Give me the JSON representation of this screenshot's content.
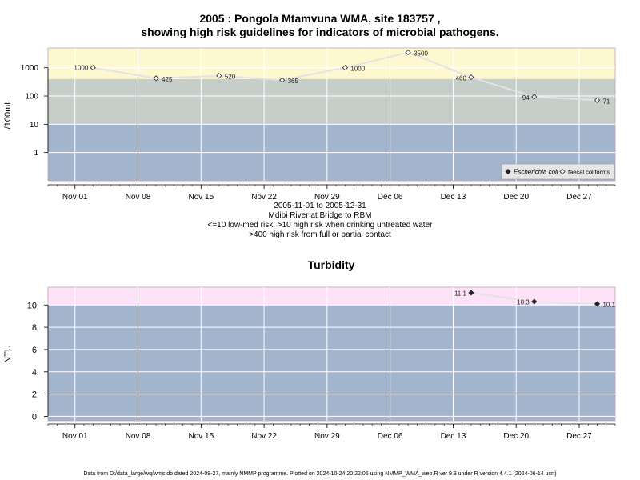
{
  "header": {
    "title_line1": "2005 : Pongola Mtamvuna WMA, site 183757 ,",
    "title_line2": "showing high risk guidelines for indicators of microbial pathogens."
  },
  "subtitle": {
    "line1": "2005-11-01 to 2005-12-31",
    "line2": "Mdibi River at Bridge to RBM",
    "line3": "<=10 low-med risk; >10 high risk when drinking untreated water",
    "line4": ">400 high risk from full or partial contact"
  },
  "footer": {
    "text": "Data from D:/data_large/wq/wms.db dated 2024-08-27, mainly NMMP programme. Plotted on 2024-10-24 20:22:06 using NMMP_WMA_web.R ver 9.3 under R version 4.4.1 (2024-06-14 ucrt)"
  },
  "colors": {
    "band_low": "#a3b4cd",
    "band_mid": "#c6ceca",
    "band_high": "#fef8d0",
    "band_pink": "#fde2f8",
    "grid": "#ffffff",
    "line": "#e3e3e3"
  },
  "chart_data": [
    {
      "type": "line",
      "title": "",
      "xlabel": "",
      "ylabel": "/100mL",
      "yscale": "log",
      "xlim": [
        "2005-10-29",
        "2005-12-31"
      ],
      "ylim": [
        0.1,
        5000
      ],
      "x_ticks": [
        "Nov 01",
        "Nov 08",
        "Nov 15",
        "Nov 22",
        "Nov 29",
        "Dec 06",
        "Dec 13",
        "Dec 20",
        "Dec 27"
      ],
      "y_ticks": [
        "1",
        "10",
        "100",
        "1000"
      ],
      "bands": [
        {
          "from": 0.1,
          "to": 10,
          "risk": "low-med"
        },
        {
          "from": 10,
          "to": 400,
          "risk": "high (drinking)"
        },
        {
          "from": 400,
          "to": 5000,
          "risk": "high (contact)"
        }
      ],
      "legend": {
        "position": "bottom-right",
        "entries": [
          "Escherichia coli",
          "faecal coliforms"
        ]
      },
      "series": [
        {
          "name": "faecal coliforms",
          "marker": "open-diamond",
          "x": [
            "2005-11-03",
            "2005-11-10",
            "2005-11-17",
            "2005-11-24",
            "2005-12-01",
            "2005-12-08",
            "2005-12-15",
            "2005-12-22",
            "2005-12-29"
          ],
          "values": [
            1000,
            425,
            520,
            365,
            1000,
            3500,
            460,
            94,
            71
          ],
          "labels": [
            "1000",
            "425",
            "520",
            "365",
            "1000",
            "3500",
            "460",
            "94",
            "71"
          ]
        }
      ]
    },
    {
      "type": "line",
      "title": "Turbidity",
      "xlabel": "",
      "ylabel": "NTU",
      "xlim": [
        "2005-10-29",
        "2005-12-31"
      ],
      "ylim": [
        -0.4,
        11.6
      ],
      "x_ticks": [
        "Nov 01",
        "Nov 08",
        "Nov 15",
        "Nov 22",
        "Nov 29",
        "Dec 06",
        "Dec 13",
        "Dec 20",
        "Dec 27"
      ],
      "y_ticks": [
        "0",
        "2",
        "4",
        "6",
        "8",
        "10"
      ],
      "bands": [
        {
          "from": -0.4,
          "to": 10
        },
        {
          "from": 10,
          "to": 11.6
        }
      ],
      "series": [
        {
          "name": "",
          "marker": "filled-diamond",
          "x": [
            "2005-12-15",
            "2005-12-22",
            "2005-12-29"
          ],
          "values": [
            11.1,
            10.3,
            10.1
          ],
          "labels": [
            "11.1",
            "10.3",
            "10.1"
          ]
        }
      ]
    }
  ]
}
